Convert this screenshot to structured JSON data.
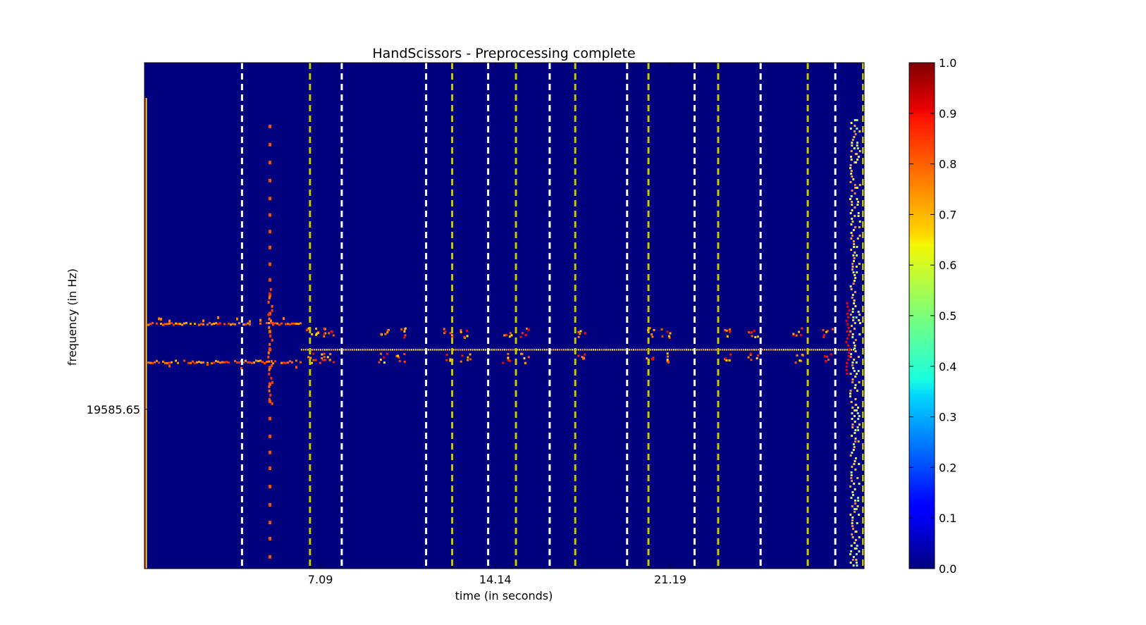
{
  "chart_data": {
    "type": "heatmap",
    "title": "HandScissors - Preprocessing complete",
    "xlabel": "time (in seconds)",
    "ylabel": "frequency (in Hz)",
    "x_range": [
      0,
      29.0
    ],
    "x_ticks": [
      7.09,
      14.14,
      21.19
    ],
    "x_tick_labels": [
      "7.09",
      "14.14",
      "21.19"
    ],
    "y_ticks": [
      19585.65
    ],
    "y_tick_labels": [
      "19585.65"
    ],
    "y_tick_position_fraction": 0.315,
    "colormap": "jet",
    "colorbar": {
      "range": [
        0.0,
        1.0
      ],
      "ticks": [
        0.0,
        0.1,
        0.2,
        0.3,
        0.4,
        0.5,
        0.6,
        0.7,
        0.8,
        0.9,
        1.0
      ],
      "tick_labels": [
        "0.0",
        "0.1",
        "0.2",
        "0.3",
        "0.4",
        "0.5",
        "0.6",
        "0.7",
        "0.8",
        "0.9",
        "1.0"
      ]
    },
    "background_value": 0.0,
    "white_dashed_lines_x": [
      3.93,
      7.95,
      11.35,
      13.85,
      16.33,
      19.45,
      22.17,
      24.83,
      27.84
    ],
    "yellow_dashed_lines_x": [
      6.67,
      12.4,
      14.97,
      17.36,
      20.31,
      23.12,
      26.73,
      28.96
    ],
    "white_line_color": "#ffffff",
    "yellow_line_color": "#c8c800",
    "upper_band_y_fraction": 0.485,
    "lower_band_y_fraction": 0.412,
    "center_line_y_fraction": 0.433,
    "center_line_x_range": [
      6.3,
      28.6
    ],
    "event_columns_x": [
      5.0,
      28.8
    ],
    "event_column_values": [
      0.8,
      0.65
    ]
  }
}
